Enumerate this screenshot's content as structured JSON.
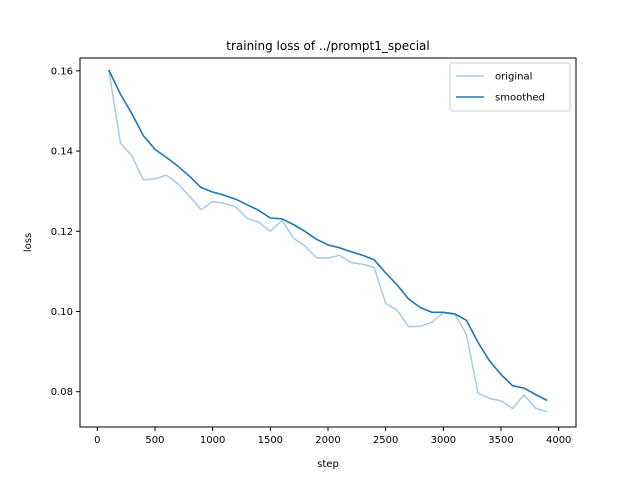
{
  "chart_data": {
    "type": "line",
    "title": "training loss of ../prompt1_special",
    "xlabel": "step",
    "ylabel": "loss",
    "xlim": [
      -150,
      4150
    ],
    "ylim": [
      0.0712,
      0.1632
    ],
    "xticks": [
      0,
      500,
      1000,
      1500,
      2000,
      2500,
      3000,
      3500,
      4000
    ],
    "xtick_labels": [
      "0",
      "500",
      "1000",
      "1500",
      "2000",
      "2500",
      "3000",
      "3500",
      "4000"
    ],
    "yticks": [
      0.08,
      0.1,
      0.12,
      0.14,
      0.16
    ],
    "ytick_labels": [
      "0.08",
      "0.10",
      "0.12",
      "0.14",
      "0.16"
    ],
    "grid": false,
    "legend_position": "top-right",
    "x": [
      100,
      200,
      300,
      400,
      500,
      600,
      700,
      800,
      900,
      1000,
      1100,
      1200,
      1300,
      1400,
      1500,
      1600,
      1700,
      1800,
      1900,
      2000,
      2100,
      2200,
      2300,
      2400,
      2500,
      2600,
      2700,
      2800,
      2900,
      3000,
      3100,
      3200,
      3300,
      3400,
      3500,
      3600,
      3700,
      3800,
      3900
    ],
    "series": [
      {
        "name": "original",
        "color": "#a6cbe3",
        "values": [
          0.1602,
          0.142,
          0.1388,
          0.1328,
          0.1331,
          0.134,
          0.1318,
          0.1287,
          0.1254,
          0.1274,
          0.127,
          0.1261,
          0.1232,
          0.1223,
          0.12,
          0.1227,
          0.1183,
          0.1163,
          0.1134,
          0.1133,
          0.114,
          0.1122,
          0.1118,
          0.111,
          0.102,
          0.1003,
          0.0962,
          0.0963,
          0.0973,
          0.0997,
          0.0993,
          0.0943,
          0.0797,
          0.0783,
          0.0777,
          0.0758,
          0.0792,
          0.0759,
          0.075
        ]
      },
      {
        "name": "smoothed",
        "color": "#1f77b4",
        "values": [
          0.1602,
          0.1542,
          0.1493,
          0.1438,
          0.1404,
          0.1384,
          0.1362,
          0.1337,
          0.1309,
          0.1298,
          0.129,
          0.128,
          0.1266,
          0.1252,
          0.1233,
          0.1231,
          0.1217,
          0.12,
          0.118,
          0.1166,
          0.1159,
          0.1149,
          0.114,
          0.1129,
          0.1096,
          0.1066,
          0.1031,
          0.101,
          0.0998,
          0.0998,
          0.0994,
          0.0978,
          0.0923,
          0.0877,
          0.0843,
          0.0815,
          0.0809,
          0.0793,
          0.0778
        ]
      }
    ]
  }
}
